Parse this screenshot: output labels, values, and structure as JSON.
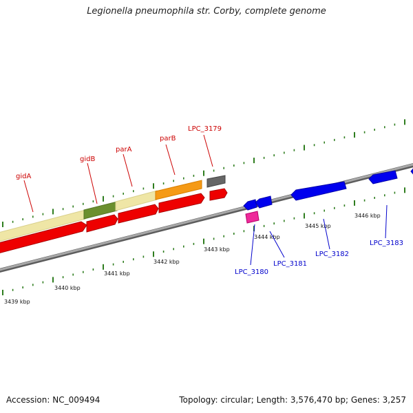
{
  "title": "Legionella pneumophila str. Corby, complete genome",
  "footer": {
    "accession": "Accession: NC_009494",
    "summary": "Topology: circular; Length: 3,576,470 bp; Genes: 3,257"
  },
  "colors": {
    "forward_label": "#cc0000",
    "reverse_label": "#0000cc",
    "tick": "#2e7d1e",
    "backbone": "#8a8a8a"
  },
  "scale_labels": [
    "3439 kbp",
    "3440 kbp",
    "3441 kbp",
    "3442 kbp",
    "3443 kbp",
    "3444 kbp",
    "3445 kbp",
    "3446 kbp"
  ],
  "gene_labels_forward": [
    "gidA",
    "gidB",
    "parA",
    "parB",
    "LPC_3179"
  ],
  "gene_labels_reverse": [
    "LPC_3180",
    "LPC_3181",
    "LPC_3182",
    "LPC_3183"
  ]
}
